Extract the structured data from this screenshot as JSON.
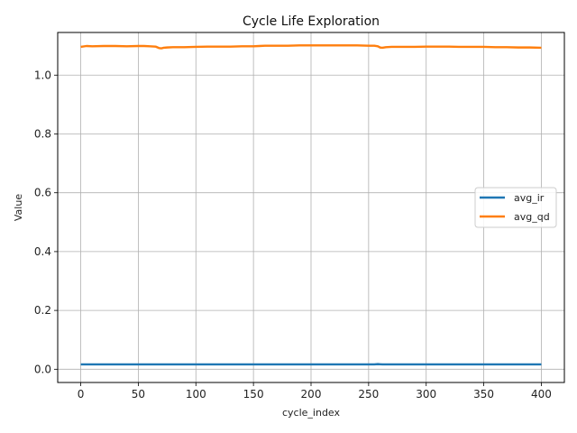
{
  "chart_data": {
    "type": "line",
    "title": "Cycle Life Exploration",
    "xlabel": "cycle_index",
    "ylabel": "Value",
    "xlim": [
      -20,
      420
    ],
    "ylim": [
      -0.045,
      1.145
    ],
    "xticks": [
      0,
      50,
      100,
      150,
      200,
      250,
      300,
      350,
      400
    ],
    "xtick_labels": [
      "0",
      "50",
      "100",
      "150",
      "200",
      "250",
      "300",
      "350",
      "400"
    ],
    "yticks": [
      0.0,
      0.2,
      0.4,
      0.6,
      0.8,
      1.0
    ],
    "ytick_labels": [
      "0.0",
      "0.2",
      "0.4",
      "0.6",
      "0.8",
      "1.0"
    ],
    "grid": true,
    "legend_position": "center-right",
    "series": [
      {
        "name": "avg_ir",
        "color": "#1f77b4",
        "x": [
          0,
          50,
          100,
          150,
          200,
          250,
          255,
          258,
          260,
          262,
          265,
          300,
          350,
          400
        ],
        "y": [
          0.0165,
          0.0165,
          0.0165,
          0.0165,
          0.0165,
          0.0165,
          0.0165,
          0.0175,
          0.017,
          0.0165,
          0.0165,
          0.0165,
          0.0165,
          0.0165
        ]
      },
      {
        "name": "avg_qd",
        "color": "#ff7f0e",
        "x": [
          0,
          5,
          10,
          20,
          30,
          40,
          50,
          55,
          60,
          65,
          68,
          70,
          72,
          75,
          80,
          90,
          100,
          110,
          120,
          130,
          140,
          150,
          155,
          160,
          170,
          180,
          190,
          200,
          210,
          220,
          230,
          240,
          250,
          255,
          258,
          260,
          262,
          265,
          270,
          280,
          290,
          300,
          310,
          320,
          330,
          340,
          350,
          360,
          370,
          380,
          390,
          400
        ],
        "y": [
          1.096,
          1.099,
          1.098,
          1.099,
          1.099,
          1.098,
          1.099,
          1.099,
          1.098,
          1.097,
          1.092,
          1.091,
          1.093,
          1.094,
          1.095,
          1.095,
          1.096,
          1.097,
          1.097,
          1.097,
          1.098,
          1.098,
          1.099,
          1.1,
          1.1,
          1.1,
          1.101,
          1.101,
          1.101,
          1.101,
          1.101,
          1.101,
          1.1,
          1.1,
          1.098,
          1.094,
          1.093,
          1.095,
          1.096,
          1.096,
          1.096,
          1.097,
          1.097,
          1.097,
          1.096,
          1.096,
          1.096,
          1.095,
          1.095,
          1.094,
          1.094,
          1.093
        ]
      }
    ]
  }
}
